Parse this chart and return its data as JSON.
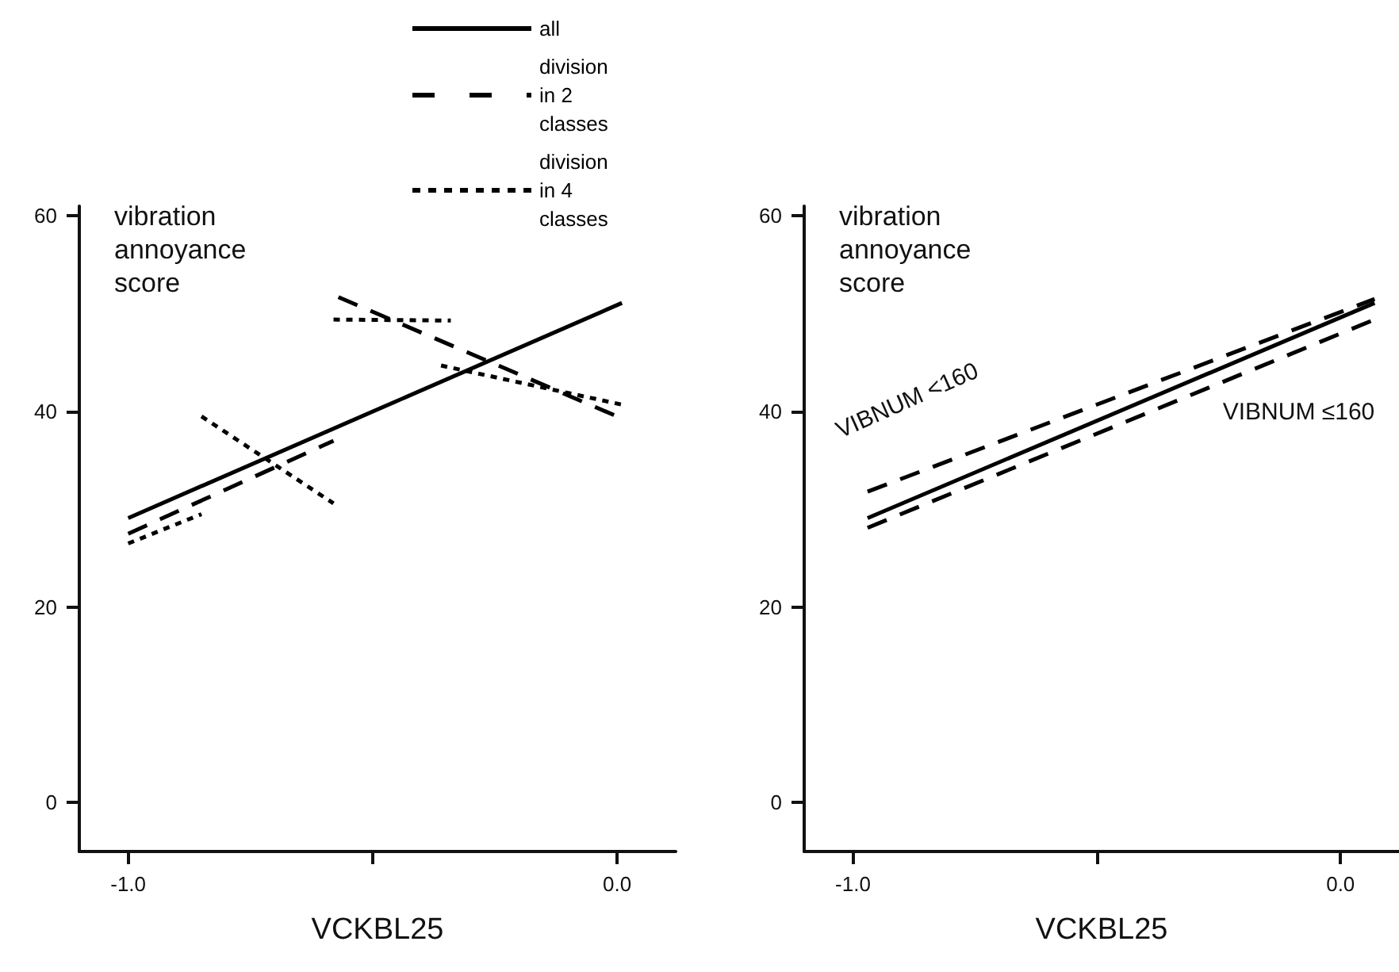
{
  "chart_data": [
    {
      "type": "line",
      "xlabel": "VCKBL25",
      "ylabel": "vibration annoyance score",
      "xlim": [
        -1.1,
        0.12
      ],
      "ylim": [
        -5,
        61
      ],
      "xticks": [
        {
          "value": -1,
          "label": "-1.0"
        },
        {
          "value": -0.5,
          "label": null
        },
        {
          "value": 0,
          "label": "0.0"
        }
      ],
      "yticks": [
        0,
        20,
        40,
        60
      ],
      "grid": false,
      "legend": "top",
      "marker": "none",
      "series": [
        {
          "name": "all",
          "color": "#000000",
          "line_style": "solid",
          "x": [
            -1.0,
            0.01
          ],
          "values": [
            29.1,
            51.1
          ]
        },
        {
          "name": "division in 2 classes",
          "color": "#000000",
          "line_style": "dashed",
          "x": [
            -1.0,
            -0.58,
            null,
            -0.57,
            0.0
          ],
          "values": [
            27.5,
            37,
            null,
            51.7,
            39.5
          ]
        },
        {
          "name": "division in 4 classes",
          "color": "#000000",
          "line_style": "dotted",
          "x": [
            -1.0,
            -0.85,
            null,
            -0.85,
            -0.58,
            null,
            -0.58,
            -0.34,
            null,
            -0.36,
            0.01
          ],
          "values": [
            26.5,
            29.5,
            null,
            39.5,
            30.6,
            null,
            49.4,
            49.3,
            null,
            44.7,
            40.7
          ]
        }
      ]
    },
    {
      "type": "line",
      "xlabel": "VCKBL25",
      "ylabel": "vibration annoyance score",
      "xlim": [
        -1.1,
        0.12
      ],
      "ylim": [
        -5,
        61
      ],
      "xticks": [
        {
          "value": -1,
          "label": "-1.0"
        },
        {
          "value": -0.5,
          "label": null
        },
        {
          "value": 0,
          "label": "0.0"
        }
      ],
      "yticks": [
        0,
        20,
        40,
        60
      ],
      "grid": false,
      "legend": false,
      "marker": "none",
      "series": [
        {
          "color": "#000000",
          "line_style": "solid",
          "x": [
            -0.97,
            0.07
          ],
          "values": [
            29.1,
            51.1
          ]
        },
        {
          "name": "VIBNUM <160",
          "color": "#000000",
          "line_style": "dashed",
          "x": [
            -0.97,
            0.07
          ],
          "values": [
            31.8,
            51.5
          ]
        },
        {
          "name": "VIBNUM ≤160",
          "color": "#000000",
          "line_style": "dashed",
          "x": [
            -0.97,
            0.07
          ],
          "values": [
            28.1,
            49.4
          ]
        }
      ]
    }
  ]
}
